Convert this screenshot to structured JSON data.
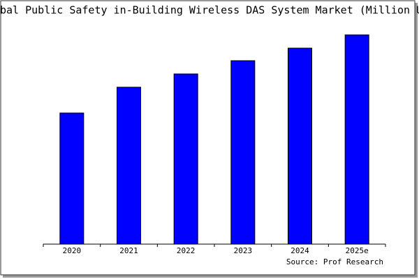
{
  "chart_data": {
    "type": "bar",
    "title": "bal Public Safety in-Building Wireless DAS System Market (Million U",
    "source": "Source: Prof Research",
    "categories": [
      "2020",
      "2021",
      "2022",
      "2023",
      "2024",
      "2025e"
    ],
    "values": [
      188,
      225,
      244,
      263,
      281,
      300
    ],
    "color": "#0000ff",
    "ylim": [
      0,
      300
    ]
  }
}
